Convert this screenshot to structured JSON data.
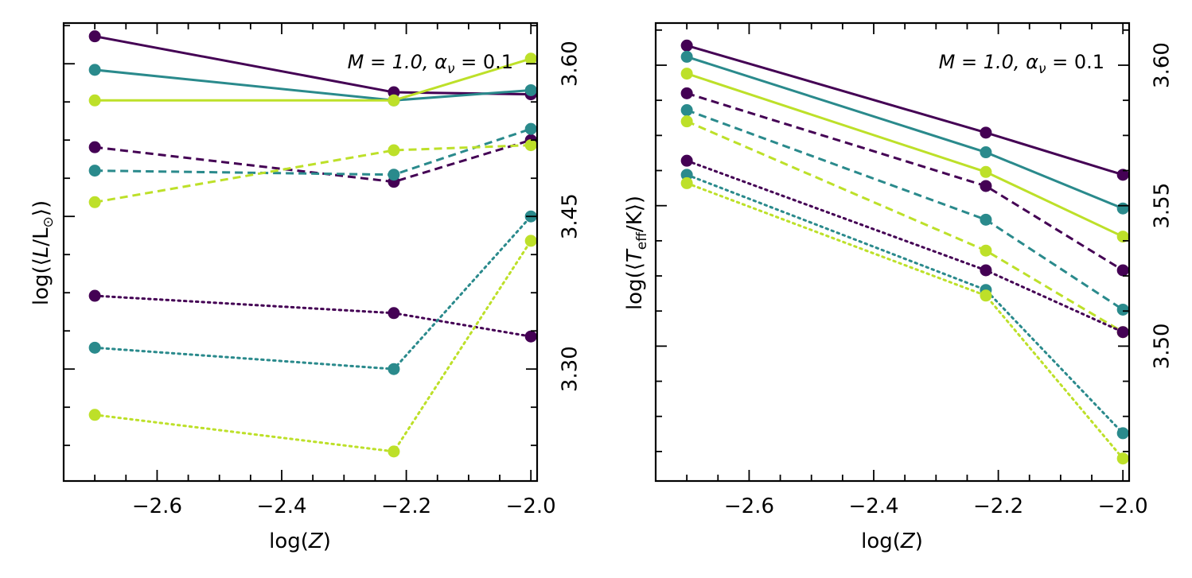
{
  "colors": {
    "dark_purple": "#440154",
    "teal": "#2a8a8c",
    "lime": "#bde029"
  },
  "chart_data": [
    {
      "type": "line",
      "annotation_math": "M = 1.0, α",
      "annotation_sub": "ν",
      "annotation_tail": " = 0.1",
      "annotation_position": "top-right",
      "xlabel_pre": "log(",
      "xlabel_var": "Z",
      "xlabel_post": ")",
      "ylabel_pre": "log(⟨",
      "ylabel_var": "L",
      "ylabel_mid": "/L",
      "ylabel_sub": "⊙",
      "ylabel_post": "⟩)",
      "xlim": [
        -2.75,
        -1.99
      ],
      "x_ticks": [
        -2.6,
        -2.4,
        -2.2,
        -2.0
      ],
      "x_tick_labels": [
        "−2.6",
        "−2.4",
        "−2.2",
        "−2.0"
      ],
      "y_axis": "right",
      "ylim": [
        3.19,
        3.64
      ],
      "y_ticks": [
        3.3,
        3.45,
        3.6
      ],
      "y_tick_labels": [
        "3.30",
        "3.45",
        "3.60"
      ],
      "series": [
        {
          "color": "#440154",
          "style": "solid",
          "x": [
            -2.7,
            -2.22,
            -2.0
          ],
          "y": [
            3.627,
            3.572,
            3.57
          ]
        },
        {
          "color": "#2a8a8c",
          "style": "solid",
          "x": [
            -2.7,
            -2.22,
            -2.0
          ],
          "y": [
            3.594,
            3.564,
            3.574
          ]
        },
        {
          "color": "#bde029",
          "style": "solid",
          "x": [
            -2.7,
            -2.22,
            -2.0
          ],
          "y": [
            3.564,
            3.564,
            3.605
          ]
        },
        {
          "color": "#440154",
          "style": "dashed",
          "x": [
            -2.7,
            -2.22,
            -2.0
          ],
          "y": [
            3.518,
            3.484,
            3.525
          ]
        },
        {
          "color": "#2a8a8c",
          "style": "dashed",
          "x": [
            -2.7,
            -2.22,
            -2.0
          ],
          "y": [
            3.495,
            3.491,
            3.536
          ]
        },
        {
          "color": "#bde029",
          "style": "dashed",
          "x": [
            -2.7,
            -2.22,
            -2.0
          ],
          "y": [
            3.464,
            3.515,
            3.52
          ]
        },
        {
          "color": "#440154",
          "style": "dotted",
          "x": [
            -2.7,
            -2.22,
            -2.0
          ],
          "y": [
            3.372,
            3.355,
            3.332
          ]
        },
        {
          "color": "#2a8a8c",
          "style": "dotted",
          "x": [
            -2.7,
            -2.22,
            -2.0
          ],
          "y": [
            3.321,
            3.3,
            3.45
          ]
        },
        {
          "color": "#bde029",
          "style": "dotted",
          "x": [
            -2.7,
            -2.22,
            -2.0
          ],
          "y": [
            3.255,
            3.219,
            3.426
          ]
        }
      ]
    },
    {
      "type": "line",
      "annotation_math": "M = 1.0, α",
      "annotation_sub": "ν",
      "annotation_tail": " = 0.1",
      "annotation_position": "top-right",
      "xlabel_pre": "log(",
      "xlabel_var": "Z",
      "xlabel_post": ")",
      "ylabel_pre": "log(⟨",
      "ylabel_var": "T",
      "ylabel_sub": "eff",
      "ylabel_post": "/K⟩)",
      "xlim": [
        -2.75,
        -1.99
      ],
      "x_ticks": [
        -2.6,
        -2.4,
        -2.2,
        -2.0
      ],
      "x_tick_labels": [
        "−2.6",
        "−2.4",
        "−2.2",
        "−2.0"
      ],
      "y_axis": "right",
      "ylim": [
        3.452,
        3.615
      ],
      "y_ticks": [
        3.5,
        3.55,
        3.6
      ],
      "y_tick_labels": [
        "3.50",
        "3.55",
        "3.60"
      ],
      "series": [
        {
          "color": "#440154",
          "style": "solid",
          "x": [
            -2.7,
            -2.22,
            -2.0
          ],
          "y": [
            3.607,
            3.576,
            3.561
          ]
        },
        {
          "color": "#2a8a8c",
          "style": "solid",
          "x": [
            -2.7,
            -2.22,
            -2.0
          ],
          "y": [
            3.603,
            3.569,
            3.549
          ]
        },
        {
          "color": "#bde029",
          "style": "solid",
          "x": [
            -2.7,
            -2.22,
            -2.0
          ],
          "y": [
            3.597,
            3.562,
            3.539
          ]
        },
        {
          "color": "#440154",
          "style": "dashed",
          "x": [
            -2.7,
            -2.22,
            -2.0
          ],
          "y": [
            3.59,
            3.557,
            3.527
          ]
        },
        {
          "color": "#2a8a8c",
          "style": "dashed",
          "x": [
            -2.7,
            -2.22,
            -2.0
          ],
          "y": [
            3.584,
            3.545,
            3.513
          ]
        },
        {
          "color": "#bde029",
          "style": "dashed",
          "x": [
            -2.7,
            -2.22,
            -2.0
          ],
          "y": [
            3.58,
            3.534,
            3.505
          ]
        },
        {
          "color": "#440154",
          "style": "dotted",
          "x": [
            -2.7,
            -2.22,
            -2.0
          ],
          "y": [
            3.566,
            3.527,
            3.505
          ]
        },
        {
          "color": "#2a8a8c",
          "style": "dotted",
          "x": [
            -2.7,
            -2.22,
            -2.0
          ],
          "y": [
            3.561,
            3.52,
            3.469
          ]
        },
        {
          "color": "#bde029",
          "style": "dotted",
          "x": [
            -2.7,
            -2.22,
            -2.0
          ],
          "y": [
            3.558,
            3.518,
            3.46
          ]
        }
      ]
    }
  ]
}
